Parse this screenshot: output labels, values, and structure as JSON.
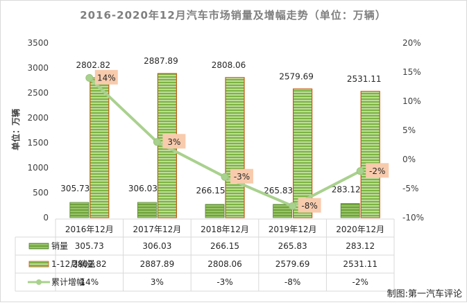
{
  "chart_data": {
    "type": "bar",
    "title": "2016-2020年12月汽车市场销量及增幅走势（单位：万辆）",
    "ylabel": "单位：万辆",
    "ylim": [
      0,
      3500
    ],
    "y_ticks": [
      0,
      500,
      1000,
      1500,
      2000,
      2500,
      3000,
      3500
    ],
    "y2lim": [
      -10,
      20
    ],
    "y2_ticks": [
      "-10%",
      "-5%",
      "0%",
      "5%",
      "10%",
      "15%",
      "20%"
    ],
    "y2_values": [
      -10,
      -5,
      0,
      5,
      10,
      15,
      20
    ],
    "categories": [
      "2016年12月",
      "2017年12月",
      "2018年12月",
      "2019年12月",
      "2020年12月"
    ],
    "series": [
      {
        "name": "销量",
        "type": "bar",
        "axis": "left",
        "values": [
          305.73,
          306.03,
          266.15,
          265.83,
          283.12
        ],
        "labels": [
          "305.73",
          "306.03",
          "266.15",
          "265.83",
          "283.12"
        ]
      },
      {
        "name": "1-12月销量",
        "type": "bar",
        "axis": "left",
        "values": [
          2802.82,
          2887.89,
          2808.06,
          2579.69,
          2531.11
        ],
        "labels": [
          "2802.82",
          "2887.89",
          "2808.06",
          "2579.69",
          "2531.11"
        ]
      },
      {
        "name": "累计增幅",
        "type": "line",
        "axis": "right",
        "values": [
          14,
          3,
          -3,
          -8,
          -2
        ],
        "labels": [
          "14%",
          "3%",
          "-3%",
          "-8%",
          "-2%"
        ]
      }
    ],
    "data_table": true,
    "grid": false,
    "colors": {
      "bar_monthly": "#6fa33a",
      "bar_cumulative": "#8dc63f",
      "bar_cumulative_border": "#c55a11",
      "line": "#a9d18e",
      "label_box": "#f8cbad"
    }
  },
  "credit": "制图:第一汽车评论"
}
